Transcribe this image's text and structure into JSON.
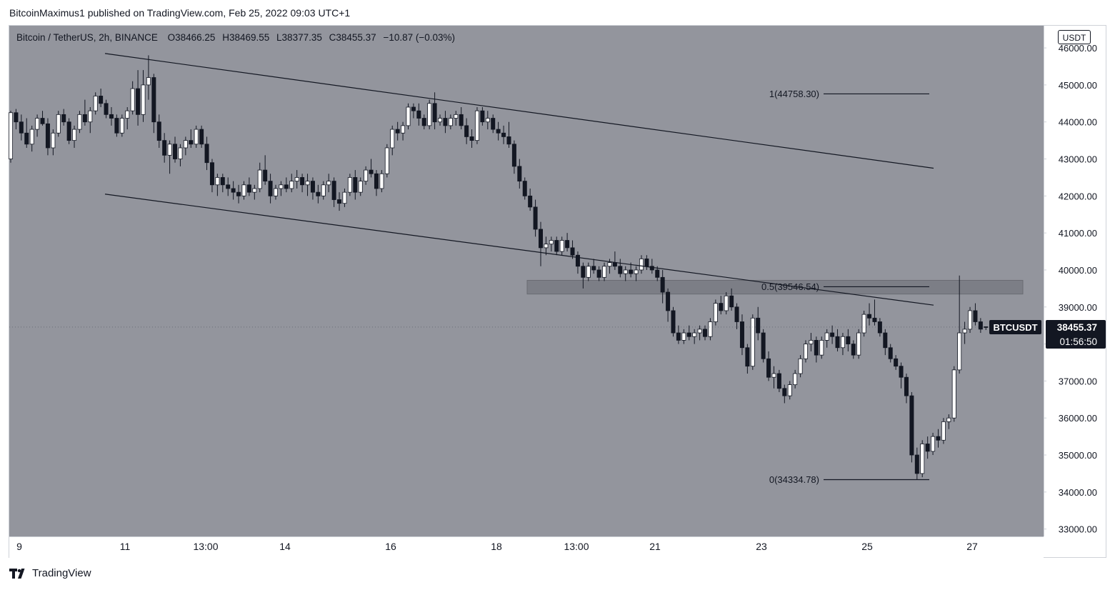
{
  "header": {
    "publisher_line": "BitcoinMaximus1 published on TradingView.com, Feb 25, 2022 09:03 UTC+1"
  },
  "legend": {
    "symbol": "Bitcoin / TetherUS, 2h, BINANCE",
    "o_label": "O",
    "o_value": "38466.25",
    "h_label": "H",
    "h_value": "38469.55",
    "l_label": "L",
    "l_value": "38377.35",
    "c_label": "C",
    "c_value": "38455.37",
    "change": "−10.87 (−0.03%)"
  },
  "currency_badge": "USDT",
  "footer": {
    "brand": "TradingView"
  },
  "colors": {
    "plot_bg": "#93959d",
    "bull": "#ffffff",
    "bear": "#131722",
    "zone": "#7c7e86"
  },
  "chart_data": {
    "type": "candlestick",
    "title": "Bitcoin / TetherUS, 2h, BINANCE",
    "ylim": [
      32800,
      46600
    ],
    "y_ticks": [
      "46000.00",
      "45000.00",
      "44000.00",
      "43000.00",
      "42000.00",
      "41000.00",
      "40000.00",
      "39000.00",
      "38000.00",
      "37000.00",
      "36000.00",
      "35000.00",
      "34000.00",
      "33000.00"
    ],
    "x_ticks": [
      "9",
      "11",
      "13:00",
      "14",
      "16",
      "18",
      "13:00",
      "21",
      "23",
      "25",
      "27"
    ],
    "price_tag": {
      "symbol": "BTCUSDT",
      "price": "38455.37",
      "countdown": "01:56:50",
      "value": 38455.37
    },
    "fib_levels": [
      {
        "label": "1(44758.30)",
        "value": 44758.3
      },
      {
        "label": "0.5(39546.54)",
        "value": 39546.54
      },
      {
        "label": "0(34334.78)",
        "value": 34334.78
      }
    ],
    "resistance_zone": {
      "low": 39350,
      "high": 39720
    },
    "channel": {
      "upper": {
        "start": [
          "Feb 10 20:00",
          45850
        ],
        "end": [
          "Feb 26 06:00",
          42750
        ]
      },
      "lower": {
        "start": [
          "Feb 10 20:00",
          42050
        ],
        "end": [
          "Feb 26 06:00",
          39050
        ]
      }
    },
    "ohlc_2h_from_feb9": [
      [
        43000,
        44300,
        42900,
        44250
      ],
      [
        44250,
        44350,
        43800,
        44000
      ],
      [
        44000,
        44200,
        43500,
        43700
      ],
      [
        43700,
        44100,
        43300,
        43400
      ],
      [
        43400,
        43900,
        43200,
        43800
      ],
      [
        43800,
        44200,
        43600,
        44100
      ],
      [
        44100,
        44300,
        43900,
        43950
      ],
      [
        43950,
        44100,
        43100,
        43300
      ],
      [
        43300,
        43800,
        43100,
        43700
      ],
      [
        43700,
        44300,
        43600,
        44200
      ],
      [
        44200,
        44350,
        43900,
        44000
      ],
      [
        44000,
        44100,
        43400,
        43500
      ],
      [
        43500,
        43900,
        43300,
        43800
      ],
      [
        43800,
        44300,
        43700,
        44200
      ],
      [
        44200,
        44600,
        43900,
        44000
      ],
      [
        44000,
        44400,
        43700,
        44300
      ],
      [
        44300,
        44800,
        44200,
        44700
      ],
      [
        44700,
        44900,
        44400,
        44500
      ],
      [
        44500,
        44600,
        44100,
        44200
      ],
      [
        44200,
        44400,
        43900,
        44100
      ],
      [
        44100,
        44200,
        43600,
        43700
      ],
      [
        43700,
        44200,
        43600,
        44100
      ],
      [
        44100,
        44400,
        43800,
        44300
      ],
      [
        44300,
        45100,
        44200,
        44900
      ],
      [
        44900,
        45400,
        43900,
        44200
      ],
      [
        44200,
        45400,
        44000,
        45000
      ],
      [
        45000,
        45800,
        44600,
        45200
      ],
      [
        45200,
        45300,
        43700,
        44000
      ],
      [
        44000,
        44200,
        43300,
        43500
      ],
      [
        43500,
        43700,
        42900,
        43100
      ],
      [
        43100,
        43500,
        42600,
        43400
      ],
      [
        43400,
        43600,
        42900,
        43000
      ],
      [
        43000,
        43400,
        42800,
        43300
      ],
      [
        43300,
        43600,
        43100,
        43500
      ],
      [
        43500,
        43800,
        43300,
        43400
      ],
      [
        43400,
        43900,
        43300,
        43800
      ],
      [
        43800,
        43900,
        43300,
        43400
      ],
      [
        43400,
        43600,
        42700,
        42900
      ],
      [
        42900,
        43000,
        42100,
        42300
      ],
      [
        42300,
        42600,
        42000,
        42500
      ],
      [
        42500,
        42600,
        42100,
        42300
      ],
      [
        42300,
        42500,
        42000,
        42200
      ],
      [
        42200,
        42400,
        41900,
        42100
      ],
      [
        42100,
        42300,
        41800,
        42000
      ],
      [
        42000,
        42400,
        41900,
        42300
      ],
      [
        42300,
        42500,
        42000,
        42100
      ],
      [
        42100,
        42300,
        41900,
        42200
      ],
      [
        42200,
        42900,
        42100,
        42700
      ],
      [
        42700,
        43100,
        42300,
        42400
      ],
      [
        42400,
        42600,
        41800,
        42000
      ],
      [
        42000,
        42300,
        41900,
        42200
      ],
      [
        42200,
        42400,
        42000,
        42300
      ],
      [
        42300,
        42500,
        42100,
        42200
      ],
      [
        42200,
        42600,
        42100,
        42400
      ],
      [
        42400,
        42700,
        42200,
        42500
      ],
      [
        42500,
        42600,
        42100,
        42300
      ],
      [
        42300,
        42600,
        42000,
        42400
      ],
      [
        42400,
        42500,
        41900,
        42100
      ],
      [
        42100,
        42300,
        41800,
        42000
      ],
      [
        42000,
        42400,
        41900,
        42300
      ],
      [
        42300,
        42600,
        42100,
        42400
      ],
      [
        42400,
        42500,
        41700,
        41900
      ],
      [
        41900,
        42100,
        41600,
        41800
      ],
      [
        41800,
        42200,
        41700,
        42100
      ],
      [
        42100,
        42600,
        42000,
        42500
      ],
      [
        42500,
        42700,
        41900,
        42100
      ],
      [
        42100,
        42500,
        42000,
        42400
      ],
      [
        42400,
        42800,
        42300,
        42700
      ],
      [
        42700,
        43000,
        42500,
        42600
      ],
      [
        42600,
        42700,
        42000,
        42200
      ],
      [
        42200,
        42700,
        42100,
        42600
      ],
      [
        42600,
        43400,
        42500,
        43300
      ],
      [
        43300,
        43900,
        43100,
        43800
      ],
      [
        43800,
        44000,
        43500,
        43700
      ],
      [
        43700,
        44000,
        43500,
        43900
      ],
      [
        43900,
        44500,
        43800,
        44400
      ],
      [
        44400,
        44500,
        44100,
        44300
      ],
      [
        44300,
        44500,
        43900,
        44100
      ],
      [
        44100,
        44200,
        43800,
        43900
      ],
      [
        43900,
        44600,
        43800,
        44500
      ],
      [
        44500,
        44800,
        43800,
        44000
      ],
      [
        44000,
        44200,
        43900,
        44100
      ],
      [
        44100,
        44300,
        43700,
        43900
      ],
      [
        43900,
        44200,
        43800,
        44100
      ],
      [
        44100,
        44300,
        43900,
        44200
      ],
      [
        44200,
        44400,
        43800,
        43900
      ],
      [
        43900,
        44100,
        43400,
        43600
      ],
      [
        43600,
        43800,
        43300,
        43500
      ],
      [
        43500,
        44400,
        43400,
        44300
      ],
      [
        44300,
        44400,
        43900,
        44000
      ],
      [
        44000,
        44300,
        43800,
        44100
      ],
      [
        44100,
        44200,
        43700,
        43800
      ],
      [
        43800,
        44000,
        43500,
        43700
      ],
      [
        43700,
        43900,
        43400,
        43600
      ],
      [
        43600,
        44000,
        43300,
        43400
      ],
      [
        43400,
        43500,
        42600,
        42800
      ],
      [
        42800,
        43000,
        42200,
        42400
      ],
      [
        42400,
        42500,
        41900,
        42000
      ],
      [
        42000,
        42200,
        41600,
        41700
      ],
      [
        41700,
        41900,
        40900,
        41100
      ],
      [
        41100,
        41300,
        40100,
        40600
      ],
      [
        40600,
        40900,
        40400,
        40700
      ],
      [
        40700,
        40900,
        40500,
        40800
      ],
      [
        40800,
        40900,
        40400,
        40500
      ],
      [
        40500,
        40900,
        40400,
        40800
      ],
      [
        40800,
        41000,
        40500,
        40600
      ],
      [
        40600,
        40800,
        40300,
        40400
      ],
      [
        40400,
        40500,
        39900,
        40100
      ],
      [
        40100,
        40200,
        39500,
        39800
      ],
      [
        39800,
        40200,
        39700,
        40100
      ],
      [
        40100,
        40300,
        39900,
        40000
      ],
      [
        40000,
        40100,
        39700,
        39800
      ],
      [
        39800,
        40200,
        39700,
        40100
      ],
      [
        40100,
        40300,
        39900,
        40200
      ],
      [
        40200,
        40500,
        40000,
        40100
      ],
      [
        40100,
        40300,
        39800,
        39900
      ],
      [
        39900,
        40100,
        39700,
        40000
      ],
      [
        40000,
        40200,
        39800,
        39900
      ],
      [
        39900,
        40100,
        39700,
        40000
      ],
      [
        40000,
        40400,
        39900,
        40300
      ],
      [
        40300,
        40400,
        40000,
        40100
      ],
      [
        40100,
        40300,
        39900,
        40000
      ],
      [
        40000,
        40100,
        39700,
        39800
      ],
      [
        39800,
        40000,
        39100,
        39400
      ],
      [
        39400,
        39500,
        38600,
        38900
      ],
      [
        38900,
        39000,
        38200,
        38300
      ],
      [
        38300,
        38500,
        38000,
        38100
      ],
      [
        38100,
        38400,
        38000,
        38300
      ],
      [
        38300,
        38500,
        38100,
        38200
      ],
      [
        38200,
        38400,
        38000,
        38300
      ],
      [
        38300,
        38500,
        38100,
        38400
      ],
      [
        38400,
        38500,
        38100,
        38200
      ],
      [
        38200,
        38700,
        38100,
        38600
      ],
      [
        38600,
        39200,
        38500,
        39100
      ],
      [
        39100,
        39300,
        38800,
        38900
      ],
      [
        38900,
        39400,
        38800,
        39300
      ],
      [
        39300,
        39500,
        38900,
        39000
      ],
      [
        39000,
        39100,
        38400,
        38600
      ],
      [
        38600,
        38800,
        37700,
        37900
      ],
      [
        37900,
        38000,
        37200,
        37400
      ],
      [
        37400,
        38800,
        37300,
        38700
      ],
      [
        38700,
        39000,
        38100,
        38300
      ],
      [
        38300,
        38400,
        37500,
        37600
      ],
      [
        37600,
        37800,
        37000,
        37100
      ],
      [
        37100,
        37400,
        36800,
        37200
      ],
      [
        37200,
        37300,
        36700,
        36800
      ],
      [
        36800,
        36900,
        36400,
        36600
      ],
      [
        36600,
        37000,
        36500,
        36900
      ],
      [
        36900,
        37300,
        36800,
        37200
      ],
      [
        37200,
        37700,
        37100,
        37600
      ],
      [
        37600,
        38100,
        37500,
        38000
      ],
      [
        38000,
        38300,
        37800,
        38100
      ],
      [
        38100,
        38200,
        37500,
        37700
      ],
      [
        37700,
        38200,
        37600,
        38100
      ],
      [
        38100,
        38400,
        37900,
        38300
      ],
      [
        38300,
        38500,
        38000,
        38200
      ],
      [
        38200,
        38400,
        37800,
        37900
      ],
      [
        37900,
        38300,
        37700,
        38200
      ],
      [
        38200,
        38400,
        37800,
        38000
      ],
      [
        38000,
        38100,
        37600,
        37700
      ],
      [
        37700,
        38400,
        37600,
        38300
      ],
      [
        38300,
        38900,
        38200,
        38800
      ],
      [
        38800,
        39100,
        38500,
        38700
      ],
      [
        38700,
        39200,
        38500,
        38600
      ],
      [
        38600,
        38700,
        38200,
        38300
      ],
      [
        38300,
        38400,
        37700,
        37900
      ],
      [
        37900,
        38000,
        37500,
        37600
      ],
      [
        37600,
        37700,
        37300,
        37400
      ],
      [
        37400,
        37500,
        36800,
        37100
      ],
      [
        37100,
        37200,
        36400,
        36600
      ],
      [
        36600,
        36700,
        34800,
        35000
      ],
      [
        35000,
        35200,
        34334,
        34500
      ],
      [
        34500,
        35400,
        34400,
        35300
      ],
      [
        35300,
        35500,
        34900,
        35100
      ],
      [
        35100,
        35600,
        35000,
        35500
      ],
      [
        35500,
        35700,
        35200,
        35400
      ],
      [
        35400,
        36000,
        35300,
        35900
      ],
      [
        35900,
        36100,
        35700,
        36000
      ],
      [
        36000,
        37400,
        35900,
        37300
      ],
      [
        37300,
        39850,
        37200,
        38300
      ],
      [
        38300,
        38600,
        38000,
        38400
      ],
      [
        38400,
        39000,
        38300,
        38900
      ],
      [
        38900,
        39100,
        38500,
        38600
      ],
      [
        38600,
        38700,
        38300,
        38400
      ],
      [
        38466,
        38470,
        38377,
        38455
      ]
    ]
  }
}
